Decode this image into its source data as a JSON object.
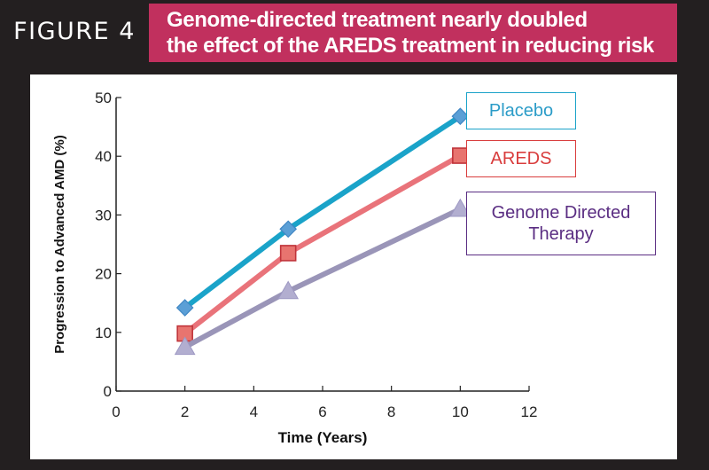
{
  "figure_label": "FIGURE 4",
  "title_line1": "Genome-directed treatment nearly doubled",
  "title_line2": "the effect of the AREDS treatment in reducing risk",
  "colors": {
    "background": "#231f20",
    "title_bg": "#c1305e",
    "placebo": "#1aa3c9",
    "areds": "#e9737a",
    "genome": "#9a95b8"
  },
  "chart_data": {
    "type": "line",
    "xlabel": "Time (Years)",
    "ylabel": "Progression to Advanced AMD (%)",
    "xlim": [
      0,
      12
    ],
    "ylim": [
      0,
      50
    ],
    "xticks": [
      "0",
      "2",
      "4",
      "6",
      "8",
      "10",
      "12"
    ],
    "yticks": [
      "0",
      "10",
      "20",
      "30",
      "40",
      "50"
    ],
    "grid": false,
    "series": [
      {
        "name": "Placebo",
        "marker": "diamond",
        "x": [
          2,
          5,
          10
        ],
        "y": [
          14.2,
          27.6,
          46.8
        ],
        "color": "#1aa3c9",
        "marker_fill": "#5b9fd6",
        "legend_color": "#1aa3c9",
        "text_color": "#2b9cc8"
      },
      {
        "name": "AREDS",
        "marker": "square",
        "x": [
          2,
          5,
          10
        ],
        "y": [
          9.8,
          23.5,
          40.1
        ],
        "color": "#e9737a",
        "marker_fill": "#e8746f",
        "legend_color": "#d93d3d",
        "text_color": "#d93d3d"
      },
      {
        "name": "Genome Directed Therapy",
        "marker": "triangle",
        "x": [
          2,
          5,
          10
        ],
        "y": [
          7.5,
          17.0,
          31.0
        ],
        "color": "#9a95b8",
        "marker_fill": "#b2aed0",
        "legend_color": "#5a2d82",
        "text_color": "#5a2d82"
      }
    ]
  }
}
